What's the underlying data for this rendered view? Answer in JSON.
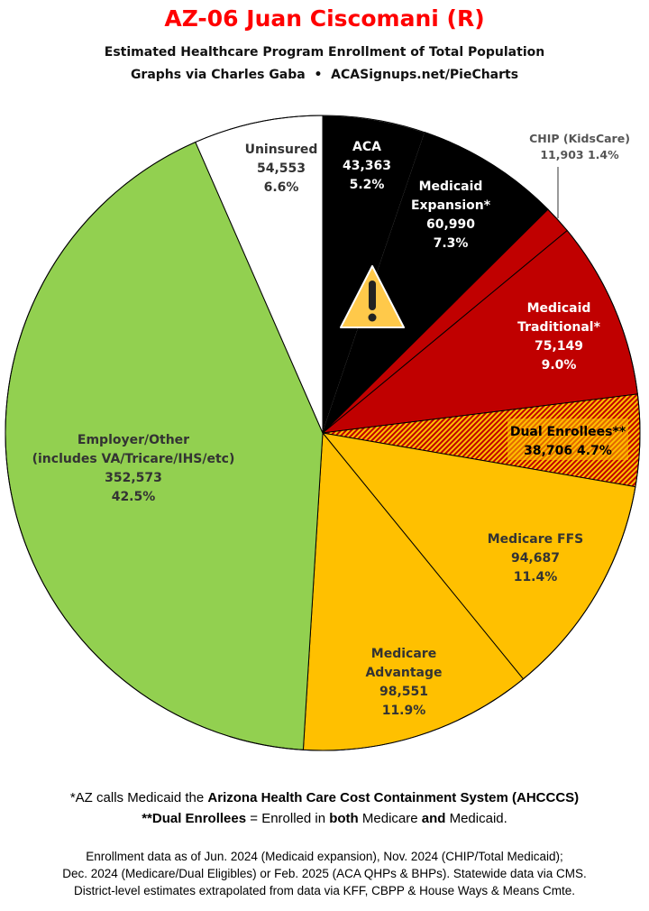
{
  "title": "AZ-06 Juan Ciscomani (R)",
  "subtitle": "Estimated Healthcare Program Enrollment of Total Population",
  "credit": "Graphs via Charles Gaba  •  ACASignups.net/PieCharts",
  "chart_data": {
    "type": "pie",
    "start_angle": "12 o'clock, clockwise",
    "slices": [
      {
        "label": [
          "ACA"
        ],
        "value": 43363,
        "value_text": "43,363",
        "pct": "5.2%",
        "color": "#000000"
      },
      {
        "label": [
          "Medicaid",
          "Expansion*"
        ],
        "value": 60990,
        "value_text": "60,990",
        "pct": "7.3%",
        "color": "#000000"
      },
      {
        "label": [
          "CHIP (KidsCare)"
        ],
        "value": 11903,
        "value_text": "11,903",
        "pct": "1.4%",
        "color": "#c00000"
      },
      {
        "label": [
          "Medicaid",
          "Traditional*"
        ],
        "value": 75149,
        "value_text": "75,149",
        "pct": "9.0%",
        "color": "#c00000"
      },
      {
        "label": [
          "Dual Enrollees**"
        ],
        "value": 38706,
        "value_text": "38,706",
        "pct": "4.7%",
        "color": "hatched #c00000/#ffc000"
      },
      {
        "label": [
          "Medicare FFS"
        ],
        "value": 94687,
        "value_text": "94,687",
        "pct": "11.4%",
        "color": "#ffc000"
      },
      {
        "label": [
          "Medicare",
          "Advantage"
        ],
        "value": 98551,
        "value_text": "98,551",
        "pct": "11.9%",
        "color": "#ffc000"
      },
      {
        "label": [
          "Employer/Other",
          "(includes VA/Tricare/IHS/etc)"
        ],
        "value": 352573,
        "value_text": "352,573",
        "pct": "42.5%",
        "color": "#92d050"
      },
      {
        "label": [
          "Uninsured"
        ],
        "value": 54553,
        "value_text": "54,553",
        "pct": "6.6%",
        "color": "#ffffff"
      }
    ],
    "annotation_icon": "warning-icon"
  },
  "notes": {
    "line1_pre": "*AZ calls Medicaid the ",
    "line1_bold": "Arizona Health Care Cost Containment System (AHCCCS)",
    "line2_bold1": "**Dual Enrollees",
    "line2_mid": " = Enrolled in ",
    "line2_bold2": "both",
    "line2_mid2": " Medicare ",
    "line2_bold3": "and",
    "line2_end": " Medicaid."
  },
  "sources": [
    "Enrollment data as of Jun. 2024 (Medicaid expansion), Nov. 2024 (CHIP/Total Medicaid);",
    "Dec. 2024 (Medicare/Dual Eligibles) or Feb. 2025 (ACA QHPs & BHPs). Statewide data via CMS.",
    "District-level estimates extrapolated from data via KFF, CBPP & House Ways & Means Cmte."
  ]
}
